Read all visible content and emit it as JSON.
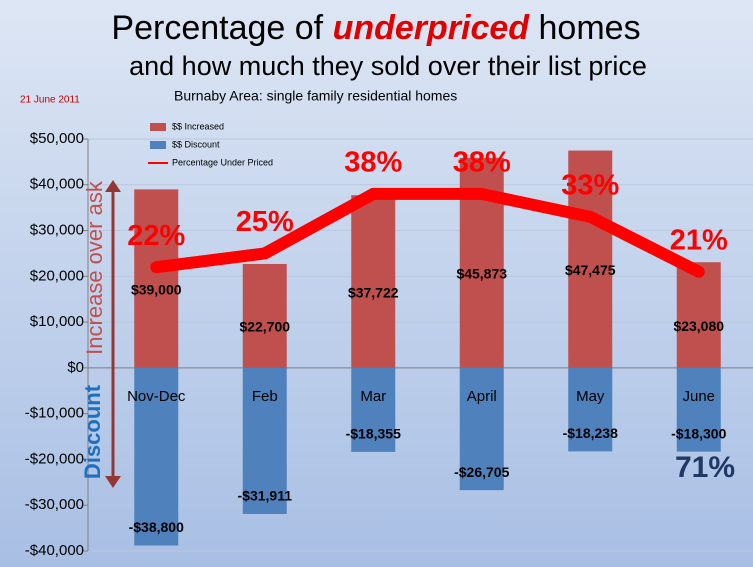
{
  "chart_data": {
    "type": "bar",
    "title": {
      "before": "Percentage of",
      "emphasis": "underpriced",
      "after": "homes"
    },
    "subtitle": "and how much they sold over their list price",
    "date": "21 June 2011",
    "caption": "Burnaby Area: single family residential homes",
    "y_annotations": {
      "increase": "Increase over ask",
      "discount": "Discount"
    },
    "annotation": "71%",
    "categories": [
      "Nov-Dec",
      "Feb",
      "Mar",
      "April",
      "May",
      "June"
    ],
    "series": [
      {
        "name": "$$ Increased",
        "color": "#c0504d",
        "values": [
          39000,
          22700,
          37722,
          45873,
          47475,
          23080
        ],
        "value_labels": [
          "$39,000",
          "$22,700",
          "$37,722",
          "$45,873",
          "$47,475",
          "$23,080"
        ]
      },
      {
        "name": "$$ Discount",
        "color": "#4f81bd",
        "values": [
          -38800,
          -31911,
          -18355,
          -26705,
          -18238,
          -18300
        ],
        "value_labels": [
          "-$38,800",
          "-$31,911",
          "-$18,355",
          "-$26,705",
          "-$18,238",
          "-$18,300"
        ]
      },
      {
        "name": "Percentage Under Priced",
        "type": "line",
        "axis": "y2",
        "color": "#ff0000",
        "values": [
          22,
          25,
          38,
          38,
          33,
          21
        ],
        "value_labels": [
          "22%",
          "25%",
          "38%",
          "38%",
          "33%",
          "21%"
        ]
      }
    ],
    "ylim": [
      -40000,
      50000
    ],
    "yticks": [
      {
        "value": -40000,
        "label": "-$40,000"
      },
      {
        "value": -30000,
        "label": "-$30,000"
      },
      {
        "value": -20000,
        "label": "-$20,000"
      },
      {
        "value": -10000,
        "label": "-$10,000"
      },
      {
        "value": 0,
        "label": "$0"
      },
      {
        "value": 10000,
        "label": "$10,000"
      },
      {
        "value": 20000,
        "label": "$20,000"
      },
      {
        "value": 30000,
        "label": "$30,000"
      },
      {
        "value": 40000,
        "label": "$40,000"
      },
      {
        "value": 50000,
        "label": "$50,000"
      }
    ],
    "y2lim": [
      -40,
      50
    ],
    "grid": true
  }
}
